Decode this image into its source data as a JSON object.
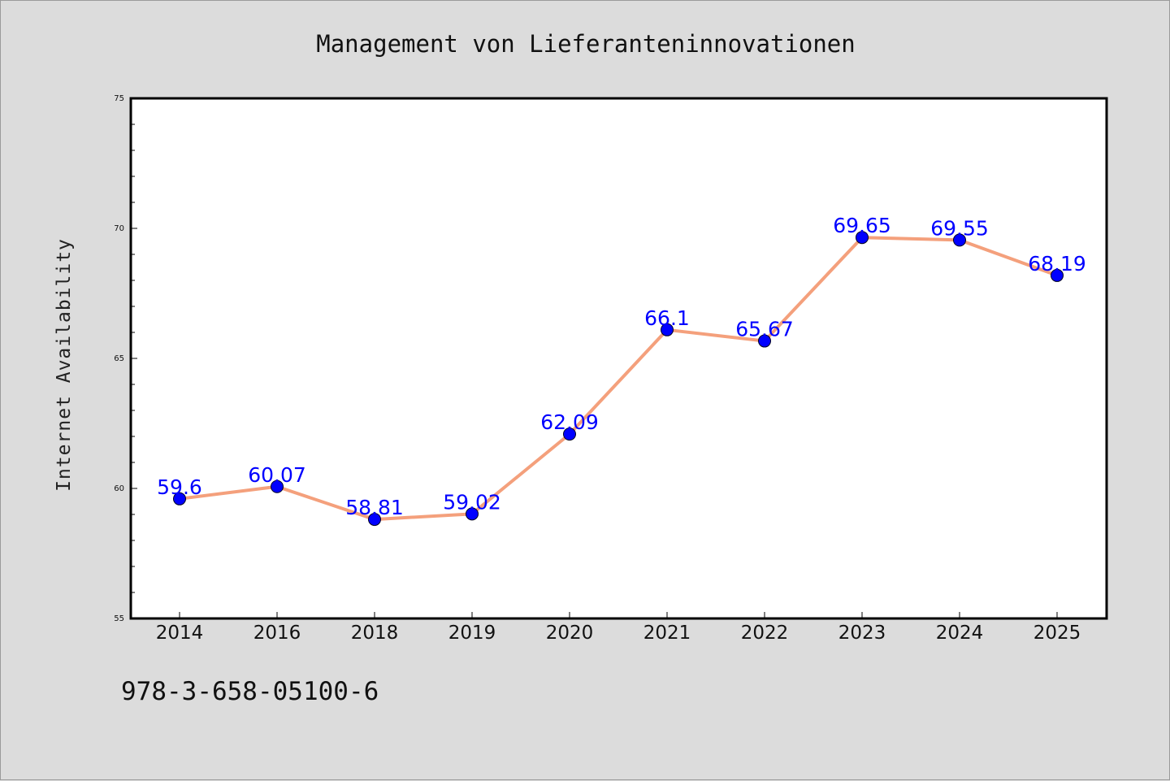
{
  "chart_data": {
    "type": "line",
    "title": "Management von Lieferanteninnovationen",
    "xlabel": "",
    "ylabel": "Internet Availability",
    "categories": [
      "2014",
      "2016",
      "2018",
      "2019",
      "2020",
      "2021",
      "2022",
      "2023",
      "2024",
      "2025"
    ],
    "series": [
      {
        "values": [
          59.6,
          60.07,
          58.81,
          59.02,
          62.09,
          66.1,
          65.67,
          69.65,
          69.55,
          68.19
        ],
        "data_labels": [
          "59.6",
          "60.07",
          "58.81",
          "59.02",
          "62.09",
          "66.1",
          "65.67",
          "69.65",
          "69.55",
          "68.19"
        ],
        "line_color": "#f4a07c",
        "marker_color": "#0000ff"
      }
    ],
    "ylim": [
      55,
      75
    ],
    "yticks": [
      "55",
      "60",
      "65",
      "70",
      "75"
    ],
    "grid": false,
    "legend": "none"
  },
  "footer": {
    "isbn": "978-3-658-05100-6"
  },
  "colors": {
    "background": "#dcdcdc",
    "plot_background": "#ffffff",
    "line": "#f4a07c",
    "marker": "#0000ff",
    "data_label": "#0000ff"
  }
}
